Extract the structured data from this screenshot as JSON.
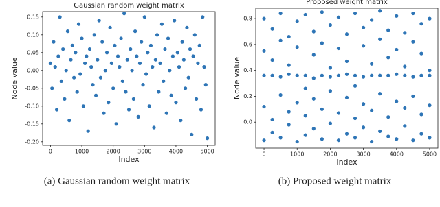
{
  "chart_data": [
    {
      "type": "scatter",
      "title": "Gaussian random weight matrix",
      "x_label": "Index",
      "y_label": "Node value",
      "color": "#2e75b6",
      "x": [
        0,
        50,
        100,
        150,
        200,
        250,
        300,
        350,
        400,
        450,
        500,
        550,
        600,
        650,
        700,
        750,
        800,
        850,
        900,
        950,
        1000,
        1050,
        1100,
        1150,
        1200,
        1250,
        1300,
        1350,
        1400,
        1450,
        1500,
        1550,
        1600,
        1650,
        1700,
        1750,
        1800,
        1850,
        1900,
        1950,
        2000,
        2050,
        2100,
        2150,
        2200,
        2250,
        2300,
        2350,
        2400,
        2450,
        2500,
        2550,
        2600,
        2650,
        2700,
        2750,
        2800,
        2850,
        2900,
        2950,
        3000,
        3050,
        3100,
        3150,
        3200,
        3250,
        3300,
        3350,
        3400,
        3450,
        3500,
        3550,
        3600,
        3650,
        3700,
        3750,
        3800,
        3850,
        3900,
        3950,
        4000,
        4050,
        4100,
        4150,
        4200,
        4250,
        4300,
        4350,
        4400,
        4450,
        4500,
        4550,
        4600,
        4650,
        4700,
        4750,
        4800,
        4850,
        4900,
        4950,
        5000
      ],
      "values": [
        0.02,
        -0.05,
        0.08,
        0.01,
        -0.11,
        0.04,
        0.15,
        -0.03,
        0.06,
        -0.08,
        0.0,
        0.11,
        -0.14,
        0.03,
        0.07,
        -0.02,
        0.05,
        -0.06,
        0.13,
        -0.01,
        0.09,
        -0.1,
        0.02,
        0.04,
        -0.17,
        0.06,
        0.01,
        -0.04,
        0.1,
        -0.07,
        0.03,
        0.14,
        -0.02,
        0.08,
        -0.12,
        0.0,
        0.05,
        -0.09,
        0.12,
        0.02,
        -0.05,
        0.07,
        -0.15,
        0.04,
        0.01,
        0.09,
        -0.03,
        0.16,
        -0.06,
        0.03,
        -0.11,
        0.06,
        0.0,
        -0.08,
        0.11,
        0.04,
        -0.13,
        0.02,
        0.08,
        -0.04,
        0.15,
        -0.01,
        0.05,
        -0.1,
        0.07,
        0.01,
        -0.16,
        0.03,
        0.1,
        -0.06,
        0.02,
        0.13,
        -0.03,
        0.06,
        -0.12,
        0.09,
        0.0,
        -0.07,
        0.04,
        0.14,
        -0.09,
        0.05,
        0.01,
        -0.14,
        0.08,
        0.03,
        -0.05,
        0.12,
        -0.02,
        0.06,
        -0.18,
        0.04,
        0.1,
        -0.08,
        0.02,
        0.07,
        -0.11,
        0.15,
        0.01,
        -0.04,
        -0.19
      ],
      "xlim": [
        -250,
        5250
      ],
      "xticks": [
        0,
        1000,
        2000,
        3000,
        4000,
        5000
      ],
      "ylim": [
        -0.21,
        0.165
      ],
      "yticks": [
        {
          "value": -0.2,
          "label": "-0.20"
        },
        -0.15,
        {
          "value": -0.1,
          "label": "-0.10"
        },
        -0.05,
        {
          "value": 0,
          "label": "0.00"
        },
        0.05,
        {
          "value": 0.1,
          "label": "0.10"
        },
        0.15
      ]
    },
    {
      "type": "scatter",
      "title": "Proposed weight matrix",
      "x_label": "Index",
      "y_label": "Node value",
      "color": "#2e75b6",
      "x": [
        0,
        0,
        0,
        0,
        0,
        250,
        250,
        250,
        250,
        250,
        500,
        500,
        500,
        500,
        500,
        750,
        750,
        750,
        750,
        750,
        1000,
        1000,
        1000,
        1000,
        1000,
        1250,
        1250,
        1250,
        1250,
        1250,
        1500,
        1500,
        1500,
        1500,
        1500,
        1750,
        1750,
        1750,
        1750,
        1750,
        2000,
        2000,
        2000,
        2000,
        2000,
        2250,
        2250,
        2250,
        2250,
        2250,
        2500,
        2500,
        2500,
        2500,
        2500,
        2750,
        2750,
        2750,
        2750,
        2750,
        3000,
        3000,
        3000,
        3000,
        3000,
        3250,
        3250,
        3250,
        3250,
        3250,
        3500,
        3500,
        3500,
        3500,
        3500,
        3750,
        3750,
        3750,
        3750,
        3750,
        4000,
        4000,
        4000,
        4000,
        4000,
        4250,
        4250,
        4250,
        4250,
        4250,
        4500,
        4500,
        4500,
        4500,
        4500,
        4750,
        4750,
        4750,
        4750,
        4750,
        5000,
        5000,
        5000,
        5000,
        5000
      ],
      "values": [
        0.8,
        0.55,
        0.36,
        0.12,
        -0.14,
        0.72,
        0.36,
        0.48,
        0.02,
        -0.08,
        0.84,
        0.63,
        0.35,
        0.21,
        -0.12,
        0.66,
        0.37,
        0.44,
        0.08,
        -0.02,
        0.78,
        0.58,
        0.36,
        0.15,
        -0.15,
        0.83,
        0.36,
        0.26,
        0.05,
        -0.1,
        0.7,
        0.52,
        0.34,
        0.18,
        -0.05,
        0.85,
        0.61,
        0.36,
        0.1,
        -0.13,
        0.75,
        0.42,
        0.35,
        0.24,
        -0.01,
        0.81,
        0.36,
        0.57,
        0.07,
        -0.14,
        0.68,
        0.47,
        0.37,
        0.19,
        -0.09,
        0.84,
        0.36,
        0.28,
        0.03,
        -0.12,
        0.73,
        0.59,
        0.35,
        0.14,
        -0.04,
        0.79,
        0.36,
        0.45,
        0.09,
        -0.15,
        0.86,
        0.64,
        0.36,
        0.22,
        -0.07,
        0.71,
        0.36,
        0.5,
        0.04,
        -0.11,
        0.82,
        0.56,
        0.37,
        0.16,
        -0.13,
        0.69,
        0.36,
        0.43,
        0.11,
        -0.03,
        0.84,
        0.62,
        0.35,
        0.2,
        -0.14,
        0.76,
        0.36,
        0.53,
        0.06,
        -0.09,
        0.8,
        0.4,
        0.36,
        0.13,
        -0.12
      ],
      "xlim": [
        -250,
        5250
      ],
      "xticks": [
        0,
        1000,
        2000,
        3000,
        4000,
        5000
      ],
      "ylim": [
        -0.2,
        0.88
      ],
      "yticks": [
        {
          "value": 0,
          "label": "0.0"
        },
        0.2,
        0.4,
        0.6,
        0.8
      ]
    }
  ],
  "captions": [
    "(a) Gaussian random weight matrix",
    "(b) Proposed weight matrix"
  ]
}
